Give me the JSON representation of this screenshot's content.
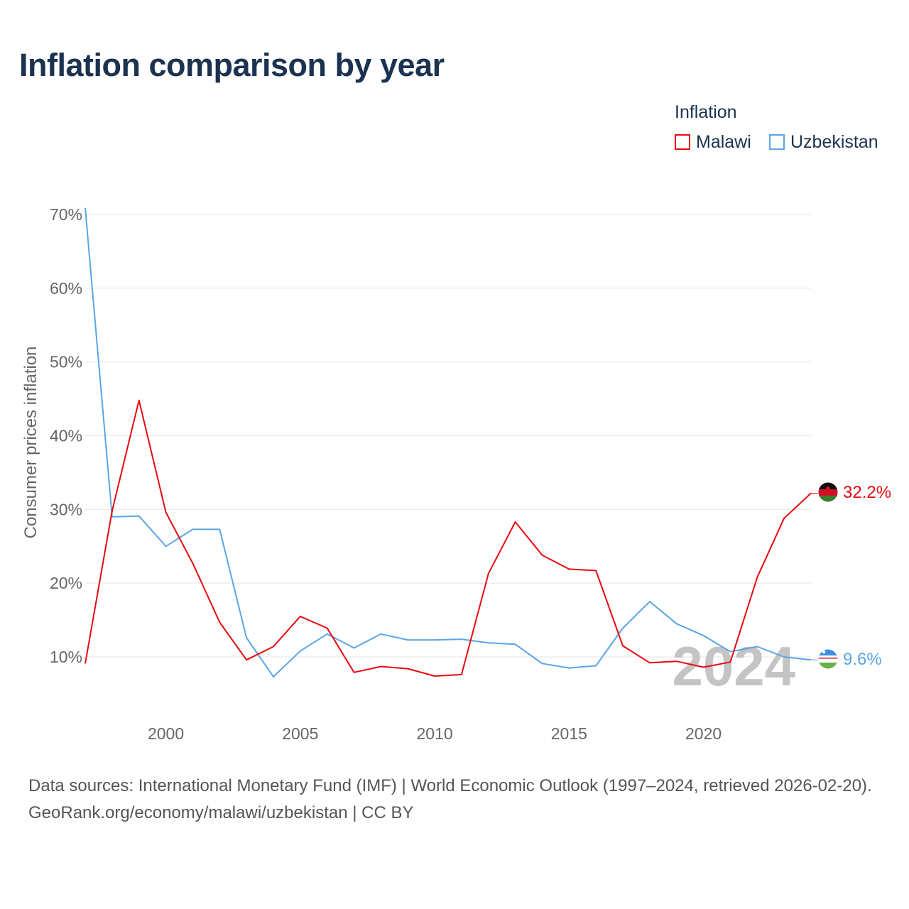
{
  "title": "Inflation comparison by year",
  "legend": {
    "title": "Inflation",
    "items": [
      {
        "label": "Malawi",
        "color": "#e8090e"
      },
      {
        "label": "Uzbekistan",
        "color": "#5ba5e6"
      }
    ]
  },
  "year_watermark": "2024",
  "end_labels": {
    "malawi": "32.2%",
    "uzbekistan": "9.6%"
  },
  "footer": {
    "sources": "Data sources: International Monetary Fund (IMF) | World Economic Outlook (1997–2024, retrieved 2026-02-20).",
    "credit": "GeoRank.org/economy/malawi/uzbekistan | CC BY"
  },
  "chart_data": {
    "type": "line",
    "title": "Inflation comparison by year",
    "xlabel": "",
    "ylabel": "Consumer prices inflation",
    "x": [
      1997,
      1998,
      1999,
      2000,
      2001,
      2002,
      2003,
      2004,
      2005,
      2006,
      2007,
      2008,
      2009,
      2010,
      2011,
      2012,
      2013,
      2014,
      2015,
      2016,
      2017,
      2018,
      2019,
      2020,
      2021,
      2022,
      2023,
      2024
    ],
    "xlim": [
      1997,
      2024
    ],
    "ylim": [
      4,
      71
    ],
    "x_ticks": [
      2000,
      2005,
      2010,
      2015,
      2020
    ],
    "x_tick_labels": [
      "2000",
      "2005",
      "2010",
      "2015",
      "2020"
    ],
    "y_ticks": [
      10,
      20,
      30,
      40,
      50,
      60,
      70
    ],
    "y_tick_labels": [
      "10%",
      "20%",
      "30%",
      "40%",
      "50%",
      "60%",
      "70%"
    ],
    "grid": true,
    "series": [
      {
        "name": "Malawi",
        "color": "#e8090e",
        "values": [
          9.1,
          29.8,
          44.8,
          29.6,
          22.7,
          14.7,
          9.6,
          11.4,
          15.5,
          13.9,
          7.9,
          8.7,
          8.4,
          7.4,
          7.6,
          21.3,
          28.3,
          23.8,
          21.9,
          21.7,
          11.5,
          9.2,
          9.4,
          8.6,
          9.3,
          20.8,
          28.8,
          32.2
        ]
      },
      {
        "name": "Uzbekistan",
        "color": "#5ba5e6",
        "values": [
          70.9,
          29.0,
          29.1,
          25.0,
          27.3,
          27.3,
          12.6,
          7.3,
          10.8,
          13.1,
          11.2,
          13.1,
          12.3,
          12.3,
          12.4,
          11.9,
          11.7,
          9.1,
          8.5,
          8.8,
          13.9,
          17.5,
          14.5,
          12.9,
          10.7,
          11.4,
          10.0,
          9.6
        ]
      }
    ],
    "legend": "top-right"
  }
}
